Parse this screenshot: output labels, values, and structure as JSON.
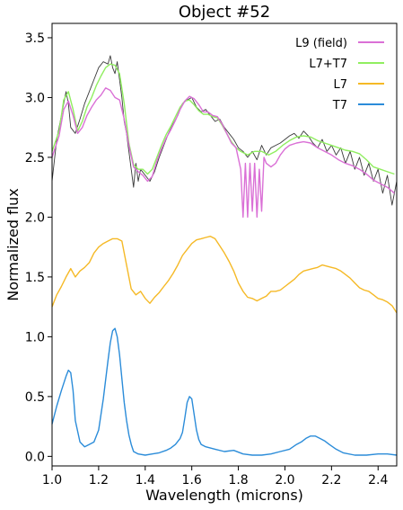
{
  "chart_data": {
    "type": "line",
    "title": "Object #52",
    "xlabel": "Wavelength (microns)",
    "ylabel": "Normalized flux",
    "xlim": [
      1.0,
      2.48
    ],
    "ylim": [
      -0.08,
      3.62
    ],
    "xticks": [
      1.0,
      1.2,
      1.4,
      1.6,
      1.8,
      2.0,
      2.2,
      2.4
    ],
    "xtick_labels": [
      "1.0",
      "1.2",
      "1.4",
      "1.6",
      "1.8",
      "2.0",
      "2.2",
      "2.4"
    ],
    "yticks": [
      0.0,
      0.5,
      1.0,
      1.5,
      2.0,
      2.5,
      3.0,
      3.5
    ],
    "ytick_labels": [
      "0.0",
      "0.5",
      "1.0",
      "1.5",
      "2.0",
      "2.5",
      "3.0",
      "3.5"
    ],
    "legend_position": "top-right",
    "series": [
      {
        "name": "L9 (field)",
        "color": "#da70d6",
        "x": [
          1.0,
          1.03,
          1.05,
          1.07,
          1.09,
          1.11,
          1.13,
          1.15,
          1.17,
          1.19,
          1.21,
          1.23,
          1.25,
          1.27,
          1.29,
          1.31,
          1.33,
          1.35,
          1.37,
          1.39,
          1.41,
          1.43,
          1.45,
          1.47,
          1.49,
          1.51,
          1.53,
          1.55,
          1.57,
          1.59,
          1.61,
          1.63,
          1.65,
          1.67,
          1.69,
          1.71,
          1.73,
          1.75,
          1.77,
          1.79,
          1.81,
          1.82,
          1.83,
          1.84,
          1.85,
          1.86,
          1.87,
          1.88,
          1.89,
          1.9,
          1.91,
          1.92,
          1.94,
          1.96,
          1.98,
          2.0,
          2.02,
          2.05,
          2.08,
          2.11,
          2.14,
          2.17,
          2.2,
          2.23,
          2.26,
          2.29,
          2.32,
          2.35,
          2.38,
          2.41,
          2.44,
          2.47
        ],
        "y": [
          2.5,
          2.68,
          2.9,
          2.97,
          2.85,
          2.7,
          2.75,
          2.85,
          2.92,
          2.98,
          3.02,
          3.08,
          3.06,
          3.0,
          2.98,
          2.82,
          2.6,
          2.42,
          2.38,
          2.35,
          2.3,
          2.34,
          2.47,
          2.57,
          2.66,
          2.73,
          2.81,
          2.9,
          2.97,
          3.01,
          2.99,
          2.94,
          2.88,
          2.88,
          2.85,
          2.84,
          2.78,
          2.7,
          2.62,
          2.58,
          2.4,
          2.0,
          2.45,
          2.0,
          2.45,
          2.05,
          2.45,
          2.0,
          2.4,
          2.05,
          2.5,
          2.45,
          2.42,
          2.45,
          2.52,
          2.57,
          2.6,
          2.62,
          2.63,
          2.62,
          2.58,
          2.55,
          2.52,
          2.48,
          2.45,
          2.43,
          2.4,
          2.36,
          2.31,
          2.28,
          2.25,
          2.2
        ]
      },
      {
        "name": "L7+T7",
        "color": "#90ee60",
        "x": [
          1.0,
          1.03,
          1.05,
          1.07,
          1.09,
          1.11,
          1.13,
          1.15,
          1.17,
          1.19,
          1.21,
          1.23,
          1.25,
          1.27,
          1.29,
          1.31,
          1.33,
          1.35,
          1.37,
          1.39,
          1.41,
          1.43,
          1.45,
          1.47,
          1.49,
          1.51,
          1.53,
          1.55,
          1.57,
          1.59,
          1.61,
          1.63,
          1.65,
          1.67,
          1.69,
          1.71,
          1.73,
          1.75,
          1.77,
          1.79,
          1.81,
          1.84,
          1.87,
          1.9,
          1.93,
          1.96,
          1.99,
          2.02,
          2.05,
          2.08,
          2.11,
          2.14,
          2.17,
          2.2,
          2.23,
          2.26,
          2.29,
          2.32,
          2.35,
          2.38,
          2.41,
          2.44,
          2.47
        ],
        "y": [
          2.55,
          2.72,
          2.98,
          3.05,
          2.9,
          2.72,
          2.8,
          2.92,
          3.0,
          3.1,
          3.18,
          3.25,
          3.28,
          3.27,
          3.2,
          2.95,
          2.62,
          2.44,
          2.4,
          2.4,
          2.36,
          2.4,
          2.5,
          2.6,
          2.69,
          2.76,
          2.84,
          2.92,
          2.97,
          2.98,
          2.94,
          2.89,
          2.86,
          2.86,
          2.84,
          2.83,
          2.77,
          2.7,
          2.63,
          2.58,
          2.55,
          2.52,
          2.55,
          2.55,
          2.52,
          2.55,
          2.6,
          2.64,
          2.67,
          2.68,
          2.67,
          2.64,
          2.62,
          2.6,
          2.58,
          2.56,
          2.55,
          2.53,
          2.48,
          2.42,
          2.4,
          2.38,
          2.36
        ]
      },
      {
        "name": "L7",
        "color": "#f5b926",
        "x": [
          1.0,
          1.02,
          1.04,
          1.06,
          1.08,
          1.1,
          1.12,
          1.14,
          1.16,
          1.18,
          1.2,
          1.22,
          1.24,
          1.26,
          1.28,
          1.3,
          1.32,
          1.34,
          1.36,
          1.38,
          1.4,
          1.42,
          1.44,
          1.46,
          1.48,
          1.5,
          1.52,
          1.54,
          1.56,
          1.58,
          1.6,
          1.62,
          1.64,
          1.66,
          1.68,
          1.7,
          1.72,
          1.74,
          1.76,
          1.78,
          1.8,
          1.82,
          1.84,
          1.86,
          1.88,
          1.9,
          1.92,
          1.94,
          1.96,
          1.98,
          2.0,
          2.02,
          2.04,
          2.06,
          2.08,
          2.1,
          2.12,
          2.14,
          2.16,
          2.18,
          2.2,
          2.22,
          2.24,
          2.26,
          2.28,
          2.3,
          2.32,
          2.34,
          2.36,
          2.38,
          2.4,
          2.42,
          2.44,
          2.46,
          2.48
        ],
        "y": [
          1.25,
          1.35,
          1.42,
          1.5,
          1.57,
          1.5,
          1.55,
          1.58,
          1.62,
          1.7,
          1.75,
          1.78,
          1.8,
          1.82,
          1.82,
          1.8,
          1.6,
          1.4,
          1.35,
          1.38,
          1.32,
          1.28,
          1.33,
          1.37,
          1.42,
          1.47,
          1.53,
          1.6,
          1.68,
          1.73,
          1.78,
          1.81,
          1.82,
          1.83,
          1.84,
          1.82,
          1.76,
          1.7,
          1.63,
          1.55,
          1.45,
          1.38,
          1.33,
          1.32,
          1.3,
          1.32,
          1.34,
          1.38,
          1.38,
          1.39,
          1.42,
          1.45,
          1.48,
          1.52,
          1.55,
          1.56,
          1.57,
          1.58,
          1.6,
          1.59,
          1.58,
          1.57,
          1.55,
          1.52,
          1.49,
          1.45,
          1.41,
          1.39,
          1.38,
          1.35,
          1.32,
          1.31,
          1.29,
          1.26,
          1.2
        ]
      },
      {
        "name": "T7",
        "color": "#2b8cd9",
        "x": [
          1.0,
          1.02,
          1.04,
          1.06,
          1.07,
          1.08,
          1.09,
          1.1,
          1.12,
          1.14,
          1.16,
          1.18,
          1.2,
          1.22,
          1.24,
          1.25,
          1.26,
          1.27,
          1.28,
          1.29,
          1.3,
          1.31,
          1.32,
          1.33,
          1.34,
          1.35,
          1.37,
          1.4,
          1.43,
          1.46,
          1.49,
          1.51,
          1.53,
          1.55,
          1.56,
          1.57,
          1.58,
          1.59,
          1.6,
          1.61,
          1.62,
          1.63,
          1.64,
          1.66,
          1.7,
          1.74,
          1.78,
          1.82,
          1.86,
          1.9,
          1.94,
          1.98,
          2.02,
          2.05,
          2.07,
          2.09,
          2.11,
          2.13,
          2.15,
          2.17,
          2.19,
          2.22,
          2.25,
          2.3,
          2.35,
          2.4,
          2.44,
          2.48
        ],
        "y": [
          0.27,
          0.42,
          0.55,
          0.67,
          0.72,
          0.7,
          0.55,
          0.3,
          0.12,
          0.08,
          0.1,
          0.12,
          0.22,
          0.48,
          0.8,
          0.95,
          1.05,
          1.07,
          1.0,
          0.85,
          0.65,
          0.45,
          0.3,
          0.18,
          0.1,
          0.04,
          0.02,
          0.01,
          0.02,
          0.03,
          0.05,
          0.07,
          0.1,
          0.15,
          0.2,
          0.32,
          0.45,
          0.5,
          0.48,
          0.35,
          0.22,
          0.14,
          0.1,
          0.08,
          0.06,
          0.04,
          0.05,
          0.02,
          0.01,
          0.01,
          0.02,
          0.04,
          0.06,
          0.1,
          0.12,
          0.15,
          0.17,
          0.17,
          0.15,
          0.13,
          0.1,
          0.06,
          0.03,
          0.01,
          0.01,
          0.02,
          0.02,
          0.01
        ]
      },
      {
        "name": "",
        "color": "#3a3a3a",
        "x": [
          1.0,
          1.02,
          1.04,
          1.06,
          1.07,
          1.08,
          1.1,
          1.12,
          1.14,
          1.16,
          1.18,
          1.2,
          1.22,
          1.24,
          1.25,
          1.26,
          1.27,
          1.28,
          1.29,
          1.3,
          1.31,
          1.32,
          1.33,
          1.34,
          1.35,
          1.36,
          1.37,
          1.38,
          1.4,
          1.42,
          1.44,
          1.46,
          1.48,
          1.5,
          1.52,
          1.54,
          1.56,
          1.58,
          1.6,
          1.62,
          1.64,
          1.66,
          1.68,
          1.7,
          1.72,
          1.74,
          1.76,
          1.78,
          1.8,
          1.82,
          1.84,
          1.86,
          1.88,
          1.9,
          1.92,
          1.94,
          1.96,
          1.98,
          2.0,
          2.02,
          2.04,
          2.06,
          2.08,
          2.1,
          2.12,
          2.14,
          2.16,
          2.18,
          2.2,
          2.22,
          2.24,
          2.26,
          2.28,
          2.3,
          2.32,
          2.34,
          2.36,
          2.38,
          2.4,
          2.42,
          2.44,
          2.46,
          2.48
        ],
        "y": [
          2.3,
          2.65,
          2.85,
          3.05,
          2.95,
          2.75,
          2.7,
          2.82,
          2.95,
          3.05,
          3.15,
          3.25,
          3.3,
          3.28,
          3.35,
          3.25,
          3.2,
          3.3,
          3.15,
          3.0,
          2.8,
          2.7,
          2.55,
          2.4,
          2.25,
          2.45,
          2.3,
          2.4,
          2.35,
          2.3,
          2.38,
          2.5,
          2.6,
          2.7,
          2.78,
          2.85,
          2.95,
          2.98,
          3.0,
          2.92,
          2.88,
          2.9,
          2.85,
          2.8,
          2.82,
          2.75,
          2.7,
          2.65,
          2.58,
          2.55,
          2.5,
          2.55,
          2.48,
          2.6,
          2.52,
          2.58,
          2.6,
          2.62,
          2.65,
          2.68,
          2.7,
          2.66,
          2.72,
          2.68,
          2.62,
          2.58,
          2.65,
          2.55,
          2.6,
          2.52,
          2.58,
          2.45,
          2.55,
          2.4,
          2.5,
          2.35,
          2.45,
          2.3,
          2.4,
          2.2,
          2.35,
          2.1,
          2.3
        ]
      }
    ]
  }
}
